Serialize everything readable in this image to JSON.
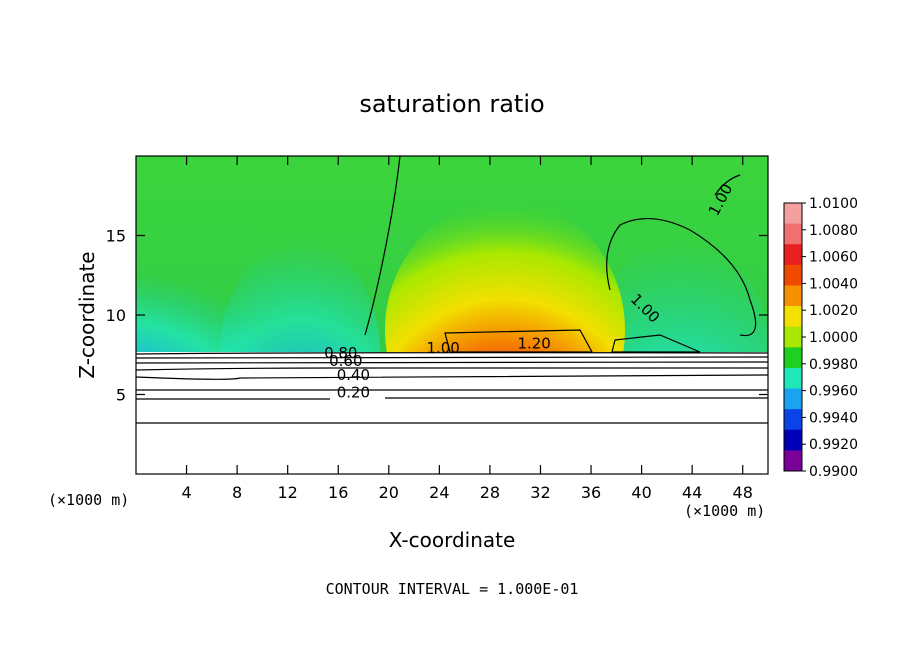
{
  "chart_data": {
    "type": "heatmap",
    "title": "saturation ratio",
    "xlabel": "X-coordinate",
    "ylabel": "Z-coordinate",
    "x_unit": "(×1000 m)",
    "y_unit": "(×1000 m)",
    "xlim": [
      0,
      50
    ],
    "ylim": [
      0,
      20
    ],
    "x_ticks": [
      "4",
      "8",
      "12",
      "16",
      "20",
      "24",
      "28",
      "32",
      "36",
      "40",
      "44",
      "48"
    ],
    "y_ticks": [
      "5",
      "10",
      "15"
    ],
    "footer": "CONTOUR INTERVAL = 1.000E-01",
    "colorbar": {
      "labels": [
        "1.0100",
        "1.0080",
        "1.0060",
        "1.0040",
        "1.0020",
        "1.0000",
        "0.9980",
        "0.9960",
        "0.9940",
        "0.9920",
        "0.9900"
      ],
      "colors": [
        "#f4a0a0",
        "#f07070",
        "#e82020",
        "#f04a00",
        "#f59000",
        "#f2e000",
        "#a8e800",
        "#20d020",
        "#20e8b8",
        "#1aa4f0",
        "#0a44e8",
        "#0000b8",
        "#7a009a"
      ]
    },
    "contour_labels": [
      "1.00",
      "1.00",
      "1.00",
      "1.20",
      "0.80",
      "0.60",
      "0.40",
      "0.20"
    ]
  }
}
